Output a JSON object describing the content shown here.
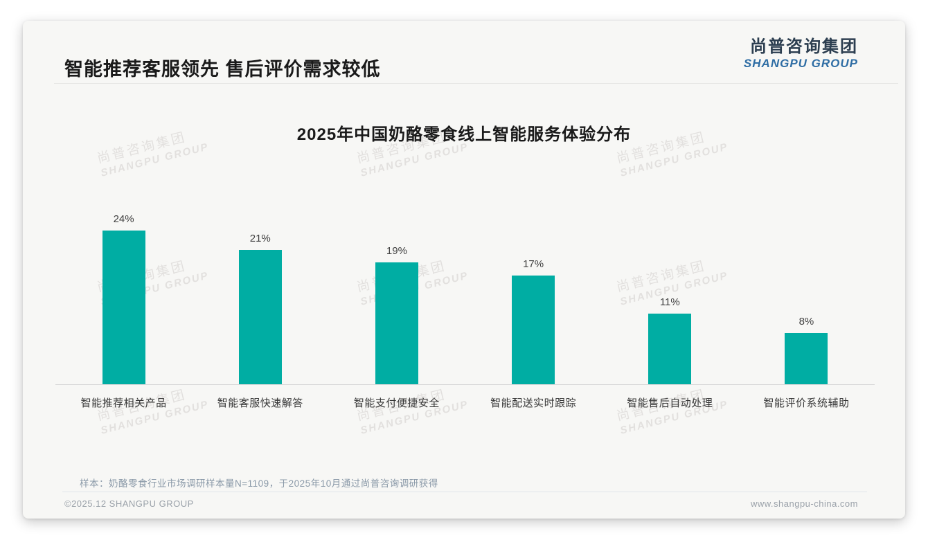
{
  "page": {
    "header": {
      "title": "智能推荐客服领先 售后评价需求较低",
      "logo": {
        "cn": "尚普咨询集团",
        "en": "SHANGPU GROUP"
      }
    },
    "note": "样本：奶酪零食行业市场调研样本量N=1109，于2025年10月通过尚普咨询调研获得",
    "footer": {
      "left": "©2025.12 SHANGPU GROUP",
      "right": "www.shangpu-china.com"
    },
    "watermark": {
      "cn": "尚普咨询集团",
      "en": "SHANGPU GROUP"
    },
    "colors": {
      "accent_teal": "#00ADA3",
      "logo_navy": "#2C3E50",
      "logo_blue": "#2E6DA4",
      "note_gray_blue": "#8A99A8",
      "footer_gray": "#9AA1A9"
    }
  },
  "chart_data": {
    "type": "bar",
    "title": "2025年中国奶酪零食线上智能服务体验分布",
    "categories": [
      "智能推荐相关产品",
      "智能客服快速解答",
      "智能支付便捷安全",
      "智能配送实时跟踪",
      "智能售后自动处理",
      "智能评价系统辅助"
    ],
    "values": [
      24,
      21,
      19,
      17,
      11,
      8
    ],
    "labels": [
      "24%",
      "21%",
      "19%",
      "17%",
      "11%",
      "8%"
    ],
    "unit": "%",
    "bar_color": "#00ADA3",
    "axis_color": "#D9D9D9",
    "ylim": [
      0,
      26
    ],
    "grid": false,
    "legend": false,
    "data_labels_position": "above-bar",
    "xlabel": "",
    "ylabel": ""
  }
}
